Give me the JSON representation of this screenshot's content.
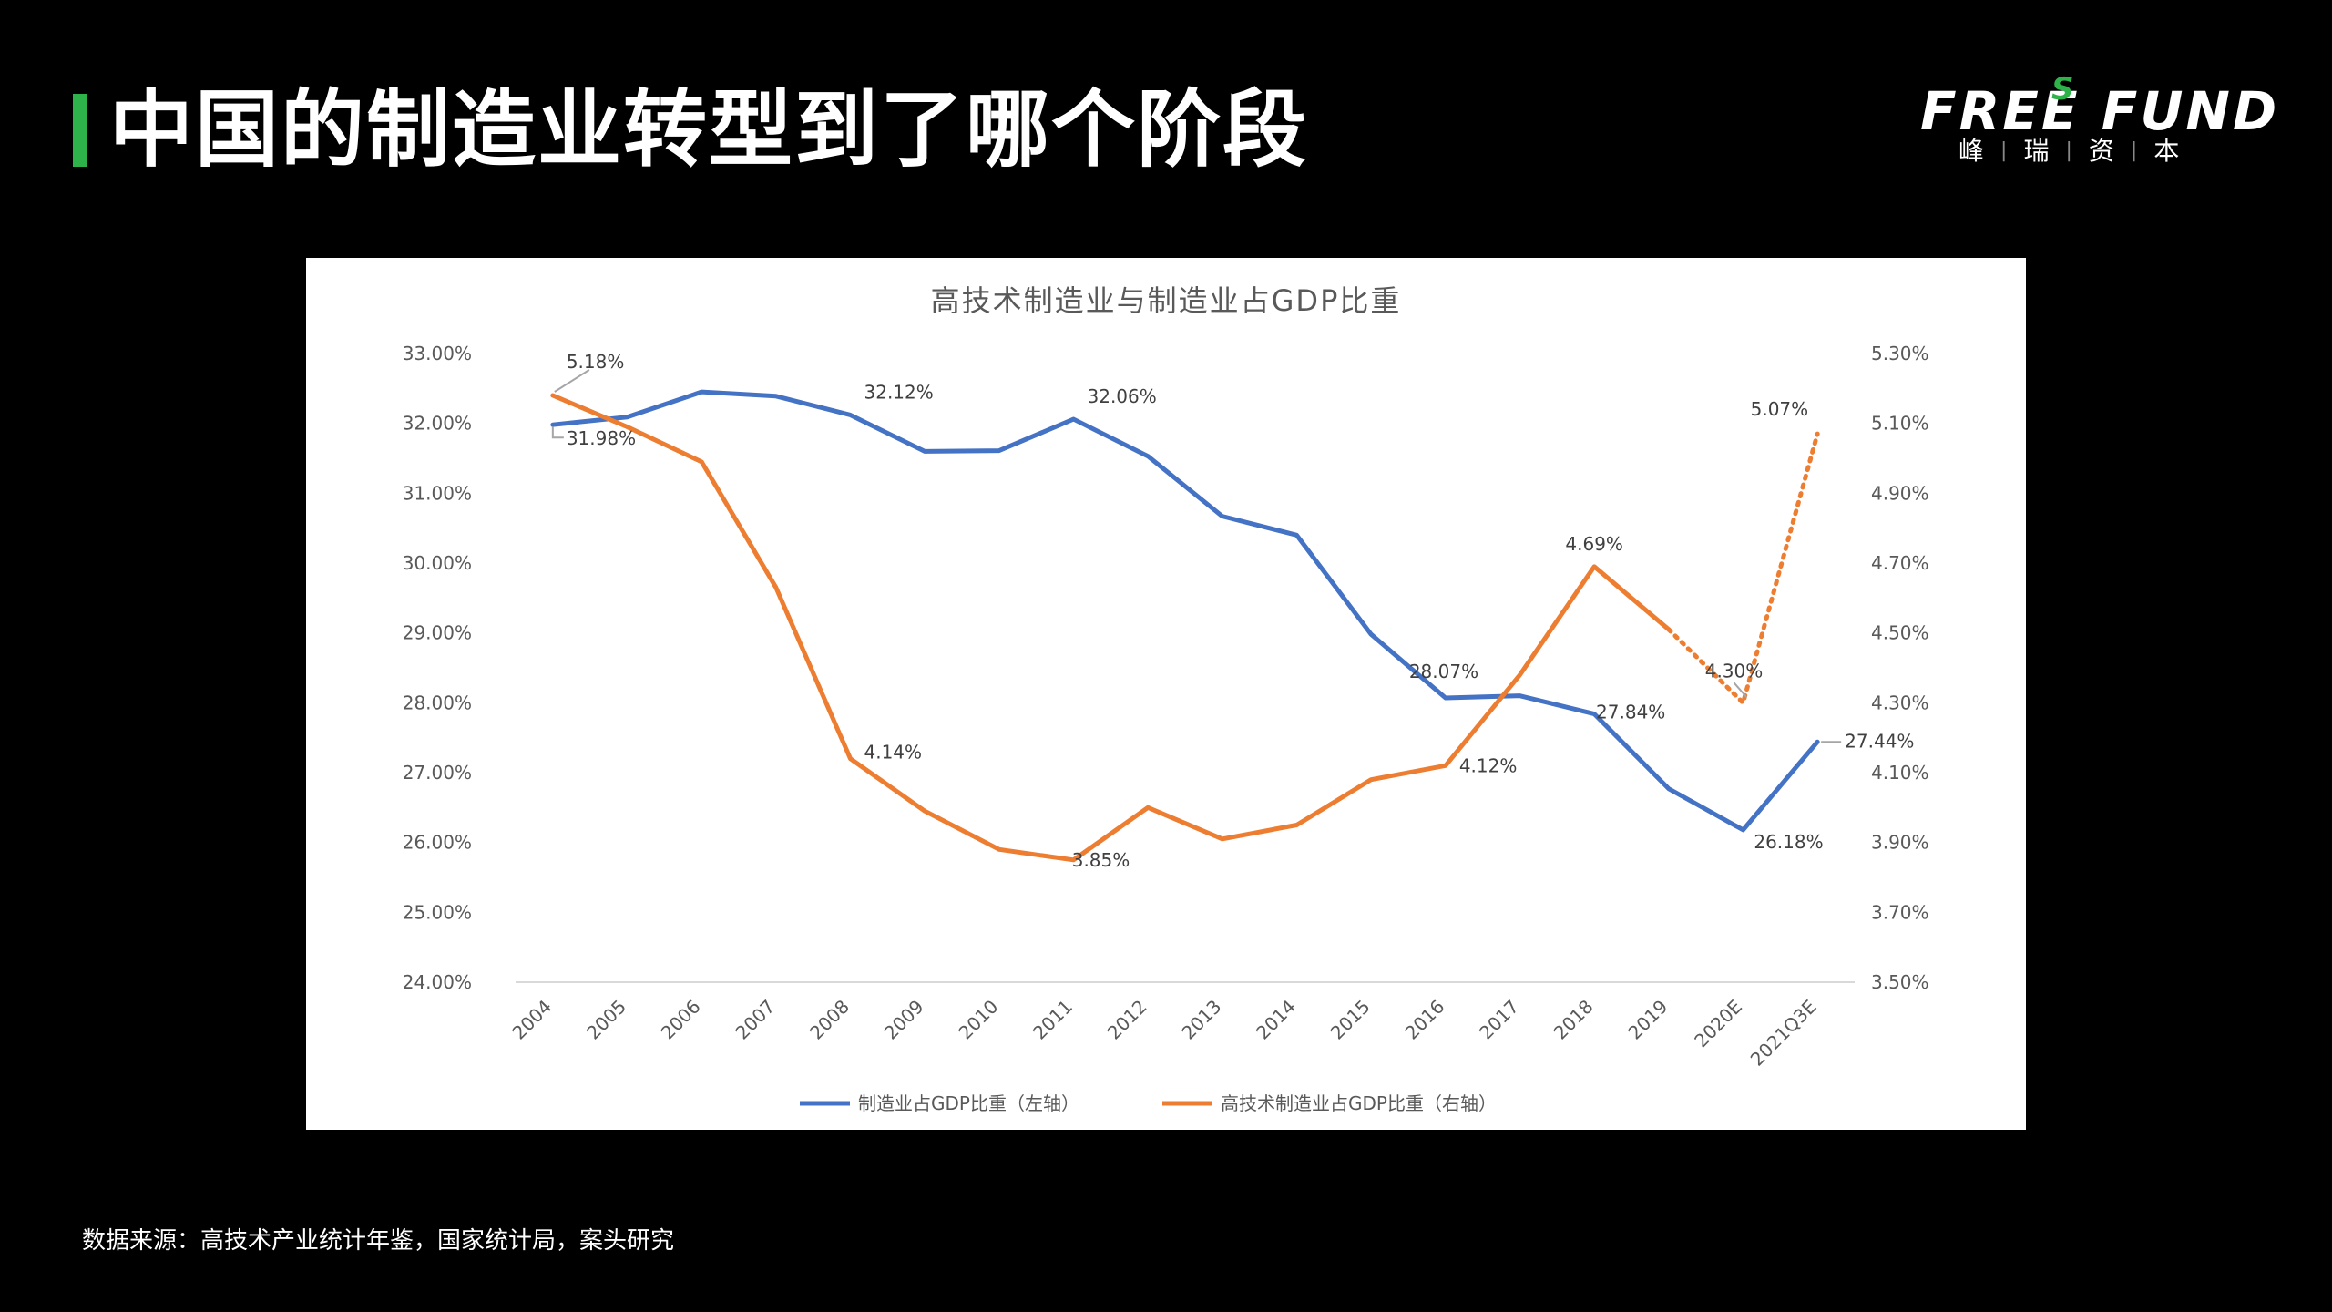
{
  "page": {
    "title": "中国的制造业转型到了哪个阶段",
    "source": "数据来源：高技术产业统计年鉴，国家统计局，案头研究"
  },
  "logo": {
    "text": "FREE FUND",
    "superscript": "S",
    "sub": [
      "峰",
      "瑞",
      "资",
      "本"
    ]
  },
  "colors": {
    "accent": "#2db34a",
    "series_blue": "#4472c4",
    "series_orange": "#ed7d31"
  },
  "chart_data": {
    "type": "line",
    "title": "高技术制造业与制造业占GDP比重",
    "categories": [
      "2004",
      "2005",
      "2006",
      "2007",
      "2008",
      "2009",
      "2010",
      "2011",
      "2012",
      "2013",
      "2014",
      "2015",
      "2016",
      "2017",
      "2018",
      "2019",
      "2020E",
      "2021Q3E"
    ],
    "y_left": {
      "ylim": [
        24,
        33
      ],
      "ticks": [
        "24.00%",
        "25.00%",
        "26.00%",
        "27.00%",
        "28.00%",
        "29.00%",
        "30.00%",
        "31.00%",
        "32.00%",
        "33.00%"
      ]
    },
    "y_right": {
      "ylim": [
        3.5,
        5.3
      ],
      "ticks": [
        "3.50%",
        "3.70%",
        "3.90%",
        "4.10%",
        "4.30%",
        "4.50%",
        "4.70%",
        "4.90%",
        "5.10%",
        "5.30%"
      ]
    },
    "series": [
      {
        "name": "制造业占GDP比重（左轴）",
        "axis": "left",
        "color": "#4472c4",
        "values": [
          31.98,
          32.09,
          32.45,
          32.39,
          32.12,
          31.6,
          31.61,
          32.06,
          31.53,
          30.67,
          30.4,
          28.98,
          28.07,
          28.1,
          27.84,
          26.77,
          26.18,
          27.44
        ]
      },
      {
        "name": "高技术制造业占GDP比重（右轴）",
        "axis": "right",
        "color": "#ed7d31",
        "values": [
          5.18,
          5.09,
          4.99,
          4.63,
          4.14,
          3.99,
          3.88,
          3.85,
          4.0,
          3.91,
          3.95,
          4.08,
          4.12,
          4.38,
          4.69,
          4.51,
          4.3,
          5.07
        ],
        "dotted_from_index": 15
      }
    ],
    "data_labels": {
      "left": [
        {
          "index": 0,
          "text": "31.98%"
        },
        {
          "index": 4,
          "text": "32.12%"
        },
        {
          "index": 7,
          "text": "32.06%"
        },
        {
          "index": 12,
          "text": "28.07%"
        },
        {
          "index": 14,
          "text": "27.84%"
        },
        {
          "index": 16,
          "text": "26.18%"
        },
        {
          "index": 17,
          "text": "27.44%"
        }
      ],
      "right": [
        {
          "index": 0,
          "text": "5.18%"
        },
        {
          "index": 4,
          "text": "4.14%"
        },
        {
          "index": 7,
          "text": "3.85%"
        },
        {
          "index": 12,
          "text": "4.12%"
        },
        {
          "index": 14,
          "text": "4.69%"
        },
        {
          "index": 16,
          "text": "4.30%"
        },
        {
          "index": 17,
          "text": "5.07%"
        }
      ]
    },
    "legend_position": "bottom",
    "grid": false
  }
}
